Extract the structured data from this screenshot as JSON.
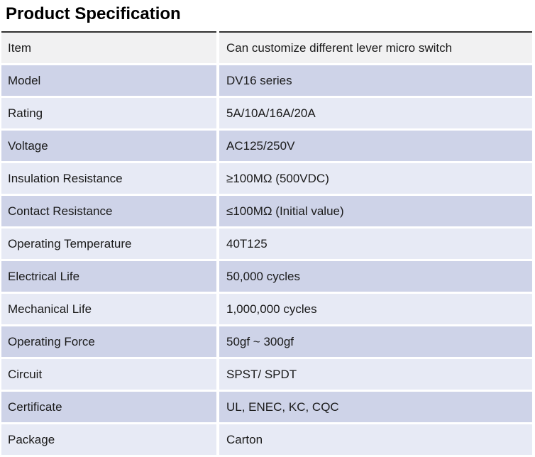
{
  "title": "Product Specification",
  "table": {
    "colors": {
      "gray": "#f1f1f2",
      "dark": "#ced3e8",
      "light": "#e7eaf5",
      "rule": "#303030",
      "text": "#1a1a1a"
    },
    "rows": [
      {
        "label": "Item",
        "value": "Can customize different lever micro switch",
        "variant": "gray"
      },
      {
        "label": "Model",
        "value": "DV16 series",
        "variant": "dark"
      },
      {
        "label": "Rating",
        "value": "5A/10A/16A/20A",
        "variant": "light"
      },
      {
        "label": "Voltage",
        "value": "AC125/250V",
        "variant": "dark"
      },
      {
        "label": "Insulation Resistance",
        "value": "≥100MΩ (500VDC)",
        "variant": "light"
      },
      {
        "label": "Contact Resistance",
        "value": "≤100MΩ (Initial value)",
        "variant": "dark"
      },
      {
        "label": "Operating Temperature",
        "value": "40T125",
        "variant": "light"
      },
      {
        "label": "Electrical Life",
        "value": "50,000 cycles",
        "variant": "dark"
      },
      {
        "label": "Mechanical Life",
        "value": "1,000,000 cycles",
        "variant": "light"
      },
      {
        "label": "Operating Force",
        "value": "50gf ~ 300gf",
        "variant": "dark"
      },
      {
        "label": "Circuit",
        "value": "SPST/ SPDT",
        "variant": "light"
      },
      {
        "label": "Certificate",
        "value": "UL, ENEC, KC, CQC",
        "variant": "dark"
      },
      {
        "label": "Package",
        "value": "Carton",
        "variant": "light"
      }
    ]
  }
}
